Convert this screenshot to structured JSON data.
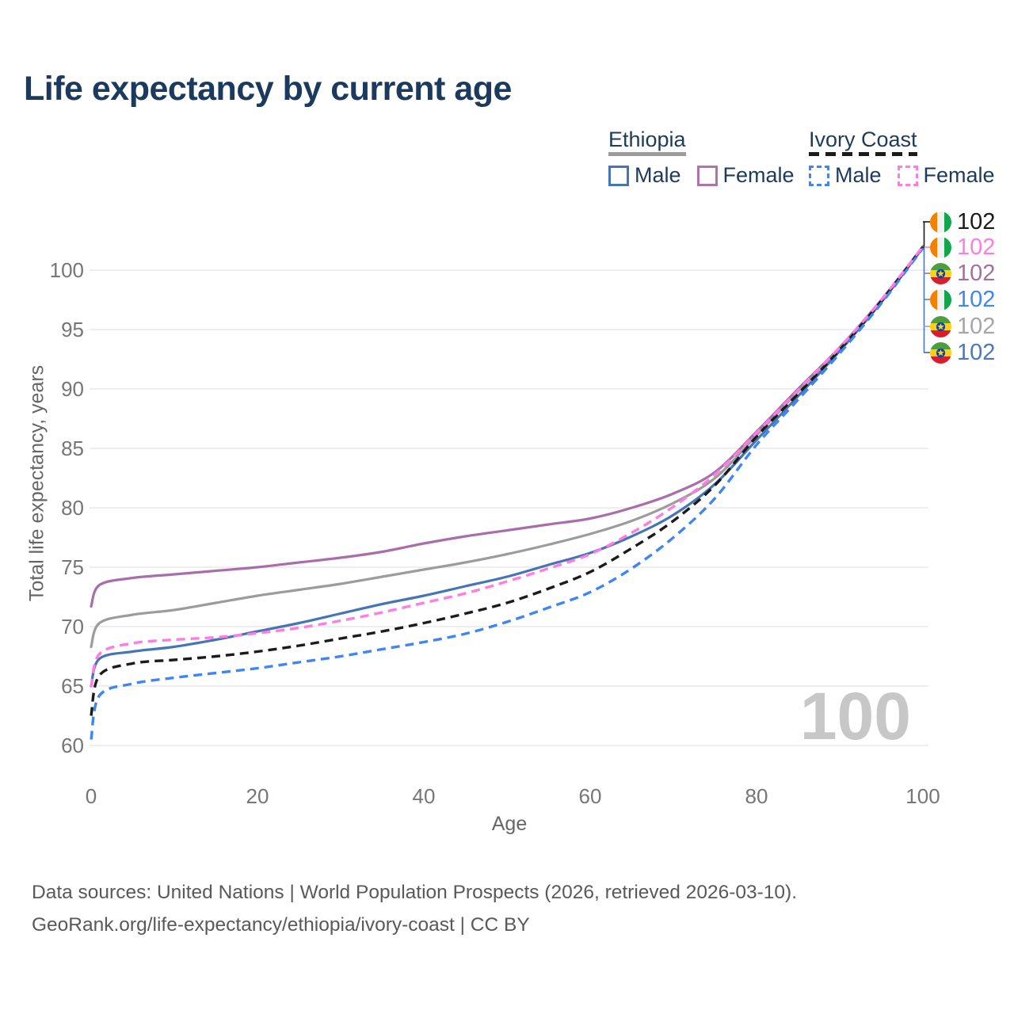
{
  "title": "Life expectancy by current age",
  "watermark": "100",
  "legend": {
    "groups": [
      {
        "name": "Ethiopia",
        "line_style": "solid",
        "line_color": "#9c9c9c",
        "items": [
          {
            "label": "Male",
            "color": "#4575b5",
            "dashed": false
          },
          {
            "label": "Female",
            "color": "#b073ad",
            "dashed": false
          }
        ]
      },
      {
        "name": "Ivory Coast",
        "line_style": "dashed",
        "line_color": "#1b1b1b",
        "items": [
          {
            "label": "Male",
            "color": "#3f86f2",
            "dashed": true
          },
          {
            "label": "Female",
            "color": "#ff7de2",
            "dashed": true
          }
        ]
      }
    ]
  },
  "chart_data": {
    "type": "line",
    "title": "Life expectancy by current age",
    "xlabel": "Age",
    "ylabel": "Total life expectancy, years",
    "xlim": [
      0,
      100
    ],
    "ylim": [
      60,
      100
    ],
    "x_ticks": [
      0,
      20,
      40,
      60,
      80,
      100
    ],
    "y_ticks": [
      60,
      65,
      70,
      75,
      80,
      85,
      90,
      95,
      100
    ],
    "grid": "horizontal",
    "legend_position": "top-right",
    "x": [
      0,
      1,
      5,
      10,
      15,
      20,
      25,
      30,
      35,
      40,
      45,
      50,
      55,
      60,
      65,
      70,
      75,
      80,
      85,
      90,
      95,
      100
    ],
    "series": [
      {
        "name": "Ethiopia Female",
        "country": "Ethiopia",
        "sex": "Female",
        "color": "#aa6dab",
        "dashed": false,
        "values": [
          71.7,
          73.5,
          74.1,
          74.4,
          74.7,
          75.0,
          75.4,
          75.8,
          76.3,
          77.0,
          77.6,
          78.1,
          78.6,
          79.1,
          80.0,
          81.2,
          83.0,
          86.4,
          90.0,
          93.5,
          97.5,
          102.0
        ]
      },
      {
        "name": "Ethiopia",
        "country": "Ethiopia",
        "sex": "Both",
        "color": "#9c9c9c",
        "dashed": false,
        "values": [
          68.3,
          70.3,
          71.0,
          71.4,
          72.0,
          72.6,
          73.1,
          73.6,
          74.2,
          74.8,
          75.4,
          76.1,
          76.9,
          77.8,
          78.9,
          80.4,
          82.5,
          86.1,
          89.8,
          93.4,
          97.4,
          101.95
        ]
      },
      {
        "name": "Ethiopia Male",
        "country": "Ethiopia",
        "sex": "Male",
        "color": "#4575b5",
        "dashed": false,
        "values": [
          65.0,
          67.3,
          67.9,
          68.3,
          68.9,
          69.6,
          70.3,
          71.1,
          71.9,
          72.6,
          73.4,
          74.2,
          75.2,
          76.2,
          77.6,
          79.4,
          82.0,
          85.7,
          89.4,
          93.2,
          97.3,
          101.9
        ]
      },
      {
        "name": "Ivory Coast",
        "country": "Ivory Coast",
        "sex": "Both",
        "color": "#1b1b1b",
        "dashed": true,
        "values": [
          62.5,
          65.9,
          66.9,
          67.2,
          67.5,
          67.9,
          68.4,
          69.0,
          69.6,
          70.3,
          71.1,
          72.0,
          73.2,
          74.6,
          76.6,
          78.9,
          81.9,
          86.0,
          89.6,
          93.3,
          97.4,
          101.95
        ]
      },
      {
        "name": "Ivory Coast Male",
        "country": "Ivory Coast",
        "sex": "Male",
        "color": "#3f86f2",
        "dashed": true,
        "values": [
          60.5,
          64.2,
          65.2,
          65.7,
          66.1,
          66.5,
          67.0,
          67.5,
          68.1,
          68.7,
          69.4,
          70.4,
          71.6,
          72.9,
          74.9,
          77.5,
          80.8,
          85.3,
          89.1,
          93.0,
          97.2,
          101.85
        ]
      },
      {
        "name": "Ivory Coast Female",
        "country": "Ivory Coast",
        "sex": "Female",
        "color": "#ff7de2",
        "dashed": true,
        "values": [
          64.9,
          67.7,
          68.6,
          68.9,
          69.1,
          69.45,
          69.9,
          70.5,
          71.2,
          72.0,
          72.8,
          73.8,
          74.9,
          76.1,
          77.9,
          80.1,
          82.8,
          86.3,
          89.9,
          93.5,
          97.5,
          102.0
        ]
      }
    ],
    "end_labels": [
      {
        "value": "102",
        "series": "Ivory Coast",
        "flag": "ivory-coast",
        "color": "#1b1b1b"
      },
      {
        "value": "102",
        "series": "Ivory Coast Female",
        "flag": "ivory-coast",
        "color": "#ff7de2"
      },
      {
        "value": "102",
        "series": "Ethiopia Female",
        "flag": "ethiopia",
        "color": "#a4719f"
      },
      {
        "value": "102",
        "series": "Ivory Coast Male",
        "flag": "ivory-coast",
        "color": "#3f86f2"
      },
      {
        "value": "102",
        "series": "Ethiopia",
        "flag": "ethiopia",
        "color": "#a6a6a6"
      },
      {
        "value": "102",
        "series": "Ethiopia Male",
        "flag": "ethiopia",
        "color": "#4a79bd"
      }
    ]
  },
  "footer": {
    "line1": "Data sources: United Nations | World Population Prospects (2026, retrieved 2026-03-10).",
    "line2": "GeoRank.org/life-expectancy/ethiopia/ivory-coast | CC BY"
  }
}
